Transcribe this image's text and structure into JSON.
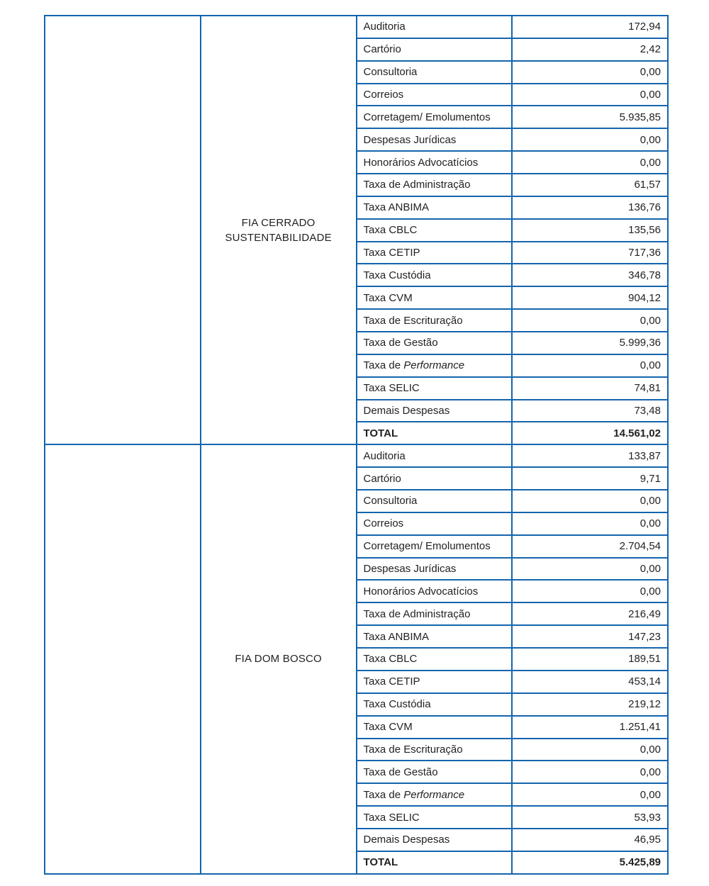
{
  "table": {
    "border_color": "#1465AE",
    "text_color": "#222222",
    "sections": [
      {
        "fund_name": "FIA CERRADO SUSTENTABILIDADE",
        "rows": [
          {
            "label": "Auditoria",
            "value": "172,94"
          },
          {
            "label": "Cartório",
            "value": "2,42"
          },
          {
            "label": "Consultoria",
            "value": "0,00"
          },
          {
            "label": "Correios",
            "value": "0,00"
          },
          {
            "label": "Corretagem/ Emolumentos",
            "value": "5.935,85"
          },
          {
            "label": "Despesas Jurídicas",
            "value": "0,00"
          },
          {
            "label": "Honorários Advocatícios",
            "value": "0,00"
          },
          {
            "label": "Taxa de Administração",
            "value": "61,57"
          },
          {
            "label": "Taxa ANBIMA",
            "value": "136,76"
          },
          {
            "label": "Taxa CBLC",
            "value": "135,56"
          },
          {
            "label": "Taxa CETIP",
            "value": "717,36"
          },
          {
            "label": "Taxa Custódia",
            "value": "346,78"
          },
          {
            "label": "Taxa CVM",
            "value": "904,12"
          },
          {
            "label": "Taxa de Escrituração",
            "value": "0,00"
          },
          {
            "label": "Taxa de Gestão",
            "value": "5.999,36"
          },
          {
            "label_prefix": "Taxa de ",
            "label_italic": "Performance",
            "value": "0,00"
          },
          {
            "label": "Taxa SELIC",
            "value": "74,81"
          },
          {
            "label": "Demais Despesas",
            "value": "73,48"
          },
          {
            "label": "TOTAL",
            "value": "14.561,02",
            "total": true
          }
        ]
      },
      {
        "fund_name": "FIA DOM BOSCO",
        "rows": [
          {
            "label": "Auditoria",
            "value": "133,87"
          },
          {
            "label": "Cartório",
            "value": "9,71"
          },
          {
            "label": "Consultoria",
            "value": "0,00"
          },
          {
            "label": "Correios",
            "value": "0,00"
          },
          {
            "label": "Corretagem/ Emolumentos",
            "value": "2.704,54"
          },
          {
            "label": "Despesas Jurídicas",
            "value": "0,00"
          },
          {
            "label": "Honorários Advocatícios",
            "value": "0,00"
          },
          {
            "label": "Taxa de Administração",
            "value": "216,49"
          },
          {
            "label": "Taxa ANBIMA",
            "value": "147,23"
          },
          {
            "label": "Taxa CBLC",
            "value": "189,51"
          },
          {
            "label": "Taxa CETIP",
            "value": "453,14"
          },
          {
            "label": "Taxa Custódia",
            "value": "219,12"
          },
          {
            "label": "Taxa CVM",
            "value": "1.251,41"
          },
          {
            "label": "Taxa de Escrituração",
            "value": "0,00"
          },
          {
            "label": "Taxa de Gestão",
            "value": "0,00"
          },
          {
            "label_prefix": "Taxa de ",
            "label_italic": "Performance",
            "value": "0,00"
          },
          {
            "label": "Taxa SELIC",
            "value": "53,93"
          },
          {
            "label": "Demais Despesas",
            "value": "46,95"
          },
          {
            "label": "TOTAL",
            "value": "5.425,89",
            "total": true
          }
        ]
      }
    ]
  }
}
